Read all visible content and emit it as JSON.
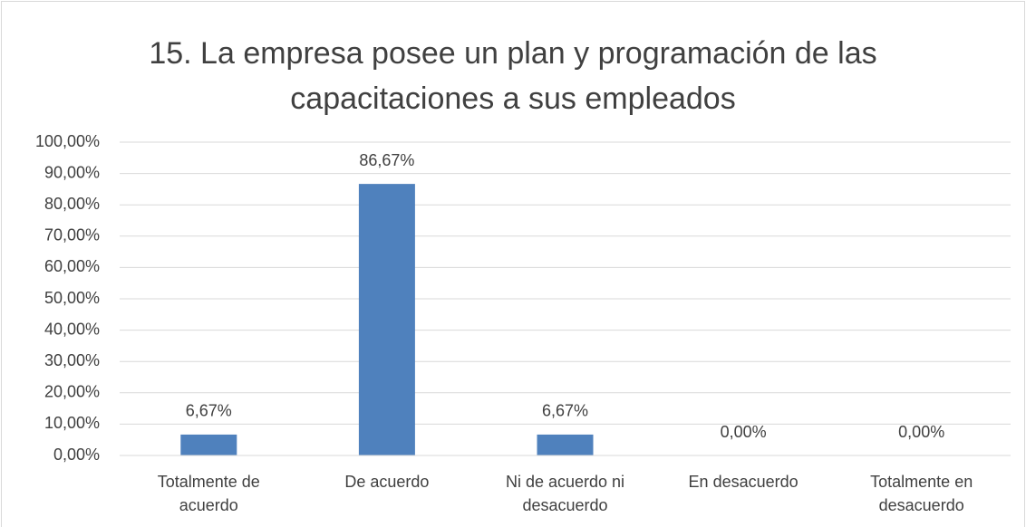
{
  "chart_data": {
    "type": "bar",
    "title": "15. La empresa posee un plan y programación de las capacitaciones a sus empleados",
    "categories": [
      "Totalmente de acuerdo",
      "De acuerdo",
      "Ni de acuerdo ni desacuerdo",
      "En desacuerdo",
      "Totalmente en desacuerdo"
    ],
    "values": [
      6.67,
      86.67,
      6.67,
      0,
      0
    ],
    "value_labels": [
      "6,67%",
      "86,67%",
      "6,67%",
      "0,00%",
      "0,00%"
    ],
    "color": "#4f81bd",
    "ylim": [
      0,
      100
    ],
    "yticks": [
      {
        "value": 0,
        "label": "0,00%"
      },
      {
        "value": 10,
        "label": "10,00%"
      },
      {
        "value": 20,
        "label": "20,00%"
      },
      {
        "value": 30,
        "label": "30,00%"
      },
      {
        "value": 40,
        "label": "40,00%"
      },
      {
        "value": 50,
        "label": "50,00%"
      },
      {
        "value": 60,
        "label": "60,00%"
      },
      {
        "value": 70,
        "label": "70,00%"
      },
      {
        "value": 80,
        "label": "80,00%"
      },
      {
        "value": 90,
        "label": "90,00%"
      },
      {
        "value": 100,
        "label": "100,00%"
      }
    ],
    "grid": true
  }
}
